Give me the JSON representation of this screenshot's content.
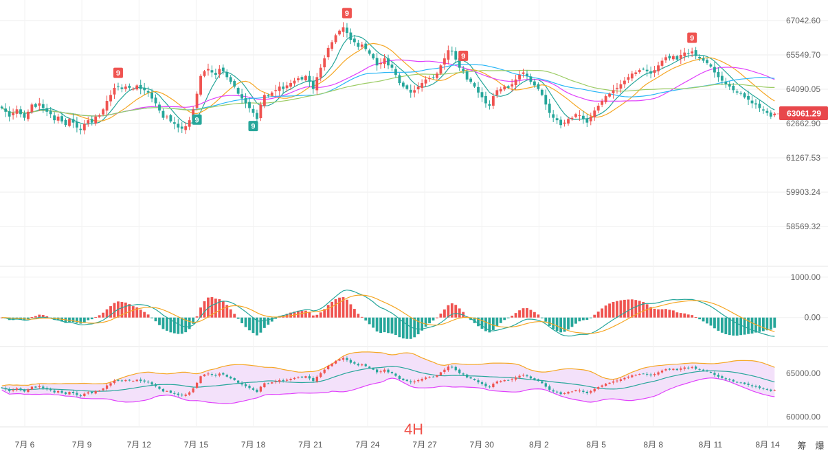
{
  "timeframe_label": "4H",
  "corner_labels": [
    "筹",
    "爆"
  ],
  "colors": {
    "up": "#ef5350",
    "down": "#26a69a",
    "ma1": "#26a69a",
    "ma2": "#f5a623",
    "ma3": "#e040fb",
    "ma4": "#29b6f6",
    "ma5": "#9ccc65",
    "price_tag": "#e8474b",
    "boll_upper": "#f5a623",
    "boll_mid": "#26a69a",
    "boll_lower": "#e040fb",
    "boll_fill": "#f3e1fa"
  },
  "current_price": "63061.29",
  "chart_data": [
    {
      "type": "candlestick",
      "yaxis_ticks": [
        "67042.60",
        "65549.70",
        "64090.05",
        "62662.90",
        "61267.53",
        "59903.24",
        "58569.32"
      ],
      "x_ticks": [
        "7月 6",
        "7月 9",
        "7月 12",
        "7月 15",
        "7月 18",
        "7月 21",
        "7月 24",
        "7月 27",
        "7月 30",
        "8月 2",
        "8月 5",
        "8月 8",
        "8月 11",
        "8月 14"
      ],
      "ylim": [
        58000,
        67500
      ],
      "log_scale": true,
      "td_markers": [
        {
          "label": "9",
          "kind": "sell",
          "date": "7月 9"
        },
        {
          "label": "9",
          "kind": "sell",
          "date": "7月 21"
        },
        {
          "label": "9",
          "kind": "sell",
          "date": "7月 27"
        },
        {
          "label": "9",
          "kind": "sell",
          "date": "8月 8"
        },
        {
          "label": "9",
          "kind": "buy",
          "date": "7月 15"
        },
        {
          "label": "9",
          "kind": "buy",
          "date": "7月 18"
        }
      ],
      "closes": [
        63300,
        63150,
        62950,
        63100,
        63250,
        63050,
        62900,
        63150,
        63450,
        63350,
        63500,
        63300,
        63150,
        63050,
        62800,
        62950,
        62750,
        62600,
        62850,
        62700,
        62500,
        62400,
        62650,
        62800,
        62700,
        62950,
        63000,
        63250,
        63600,
        63850,
        64150,
        64200,
        64100,
        64200,
        64150,
        64100,
        64250,
        64100,
        64050,
        63950,
        63700,
        63500,
        63200,
        62900,
        62950,
        62750,
        62650,
        62500,
        62450,
        62550,
        62800,
        63250,
        63900,
        64650,
        64850,
        64950,
        64800,
        64700,
        64950,
        64850,
        64600,
        64400,
        64200,
        63900,
        63700,
        63500,
        63300,
        63100,
        62850,
        63450,
        63850,
        63800,
        63950,
        64050,
        64200,
        64100,
        64250,
        64350,
        64450,
        64550,
        64500,
        64650,
        64400,
        64100,
        64600,
        65000,
        65400,
        65850,
        66100,
        66400,
        66600,
        66750,
        66500,
        66200,
        66100,
        65900,
        66000,
        65800,
        65600,
        65400,
        65100,
        65200,
        65400,
        65100,
        65000,
        64700,
        64350,
        64200,
        64100,
        63950,
        64050,
        64200,
        64350,
        64500,
        64550,
        64600,
        64750,
        65100,
        65400,
        65750,
        65700,
        65350,
        65000,
        64850,
        64500,
        64400,
        64200,
        63950,
        63750,
        63500,
        63400,
        63800,
        64050,
        64100,
        64200,
        64150,
        64300,
        64500,
        64700,
        64800,
        64650,
        64400,
        64250,
        64100,
        63850,
        63450,
        63100,
        62900,
        62800,
        62600,
        62700,
        62850,
        62900,
        63050,
        63000,
        62850,
        62700,
        62950,
        63200,
        63400,
        63600,
        63800,
        63900,
        64050,
        64150,
        64300,
        64450,
        64600,
        64750,
        64800,
        64900,
        64950,
        64850,
        64750,
        64900,
        65100,
        65300,
        65450,
        65400,
        65500,
        65350,
        65550,
        65650,
        65600,
        65700,
        65500,
        65400,
        65300,
        65200,
        65050,
        64800,
        64600,
        64450,
        64300,
        64200,
        64050,
        63950,
        63900,
        63750,
        63650,
        63500,
        63450,
        63300,
        63200,
        63100,
        62950,
        63061.29
      ]
    },
    {
      "type": "macd_histogram",
      "yaxis_ticks": [
        "1000.00",
        "0.00"
      ],
      "ylim": [
        -600,
        1100
      ]
    },
    {
      "type": "bollinger",
      "yaxis_ticks": [
        "65000.00",
        "60000.00"
      ],
      "ylim": [
        59000,
        67500
      ]
    }
  ]
}
